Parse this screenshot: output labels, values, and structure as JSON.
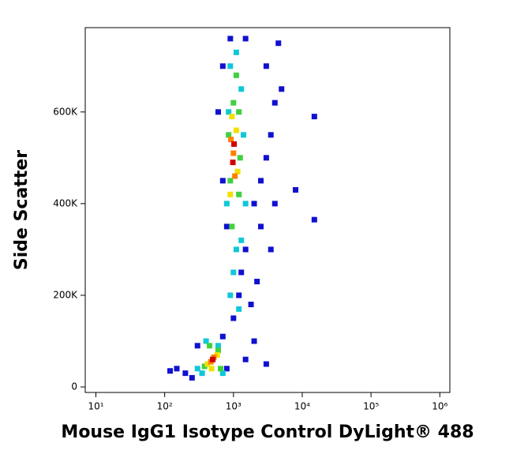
{
  "chart_data": {
    "type": "scatter",
    "x_label": "Mouse IgG1 Isotype Control DyLight® 488",
    "y_label": "Side Scatter",
    "x_scale": "log",
    "xlim": [
      7,
      1400000
    ],
    "xticks": [
      {
        "value": 10,
        "label": "10¹"
      },
      {
        "value": 100,
        "label": "10²"
      },
      {
        "value": 1000,
        "label": "10³"
      },
      {
        "value": 10000,
        "label": "10⁴"
      },
      {
        "value": 100000,
        "label": "10⁵"
      },
      {
        "value": 1000000,
        "label": "10⁶"
      }
    ],
    "ylim": [
      -12000,
      784000
    ],
    "yticks": [
      0,
      {
        "value": 200000,
        "label": "200K"
      },
      {
        "value": 400000,
        "label": "400K"
      },
      {
        "value": 600000,
        "label": "600K"
      }
    ],
    "series": [
      {
        "color": "#1010d0",
        "x": [
          200,
          150,
          120,
          250,
          300,
          700,
          800,
          1500,
          2000,
          3000,
          1200,
          1500,
          2000,
          2500,
          3000,
          3500,
          4000,
          3000,
          4500,
          1300,
          800,
          700,
          600,
          700,
          900,
          1500,
          2500,
          3500,
          5000,
          4000,
          15000,
          15000,
          8000,
          1800,
          2200,
          1000
        ],
        "values": [
          30000,
          40000,
          35000,
          20000,
          90000,
          110000,
          40000,
          60000,
          100000,
          50000,
          200000,
          300000,
          400000,
          450000,
          500000,
          550000,
          620000,
          700000,
          750000,
          250000,
          350000,
          450000,
          600000,
          700000,
          760000,
          760000,
          350000,
          300000,
          650000,
          400000,
          590000,
          365000,
          430000,
          180000,
          230000,
          150000
        ]
      },
      {
        "color": "#10c8d8",
        "x": [
          300,
          350,
          600,
          700,
          400,
          900,
          1000,
          1100,
          1300,
          800,
          850,
          1300,
          1400,
          900,
          1100,
          1200,
          1500
        ],
        "values": [
          40000,
          30000,
          90000,
          30000,
          100000,
          200000,
          250000,
          300000,
          320000,
          400000,
          600000,
          650000,
          550000,
          700000,
          730000,
          170000,
          400000
        ]
      },
      {
        "color": "#40d040",
        "x": [
          380,
          600,
          450,
          650,
          950,
          900,
          1200,
          1000,
          1200,
          1100,
          850,
          1250
        ],
        "values": [
          45000,
          80000,
          90000,
          40000,
          350000,
          450000,
          420000,
          620000,
          600000,
          680000,
          550000,
          500000
        ]
      },
      {
        "color": "#f0e000",
        "x": [
          420,
          580,
          480,
          900,
          1100,
          1150,
          950
        ],
        "values": [
          50000,
          70000,
          40000,
          420000,
          560000,
          470000,
          590000
        ]
      },
      {
        "color": "#ff8000",
        "x": [
          470,
          520,
          1000,
          1050,
          920
        ],
        "values": [
          55000,
          65000,
          510000,
          460000,
          540000
        ]
      },
      {
        "color": "#d00000",
        "x": [
          500,
          980,
          1020
        ],
        "values": [
          60000,
          490000,
          530000
        ]
      }
    ]
  }
}
